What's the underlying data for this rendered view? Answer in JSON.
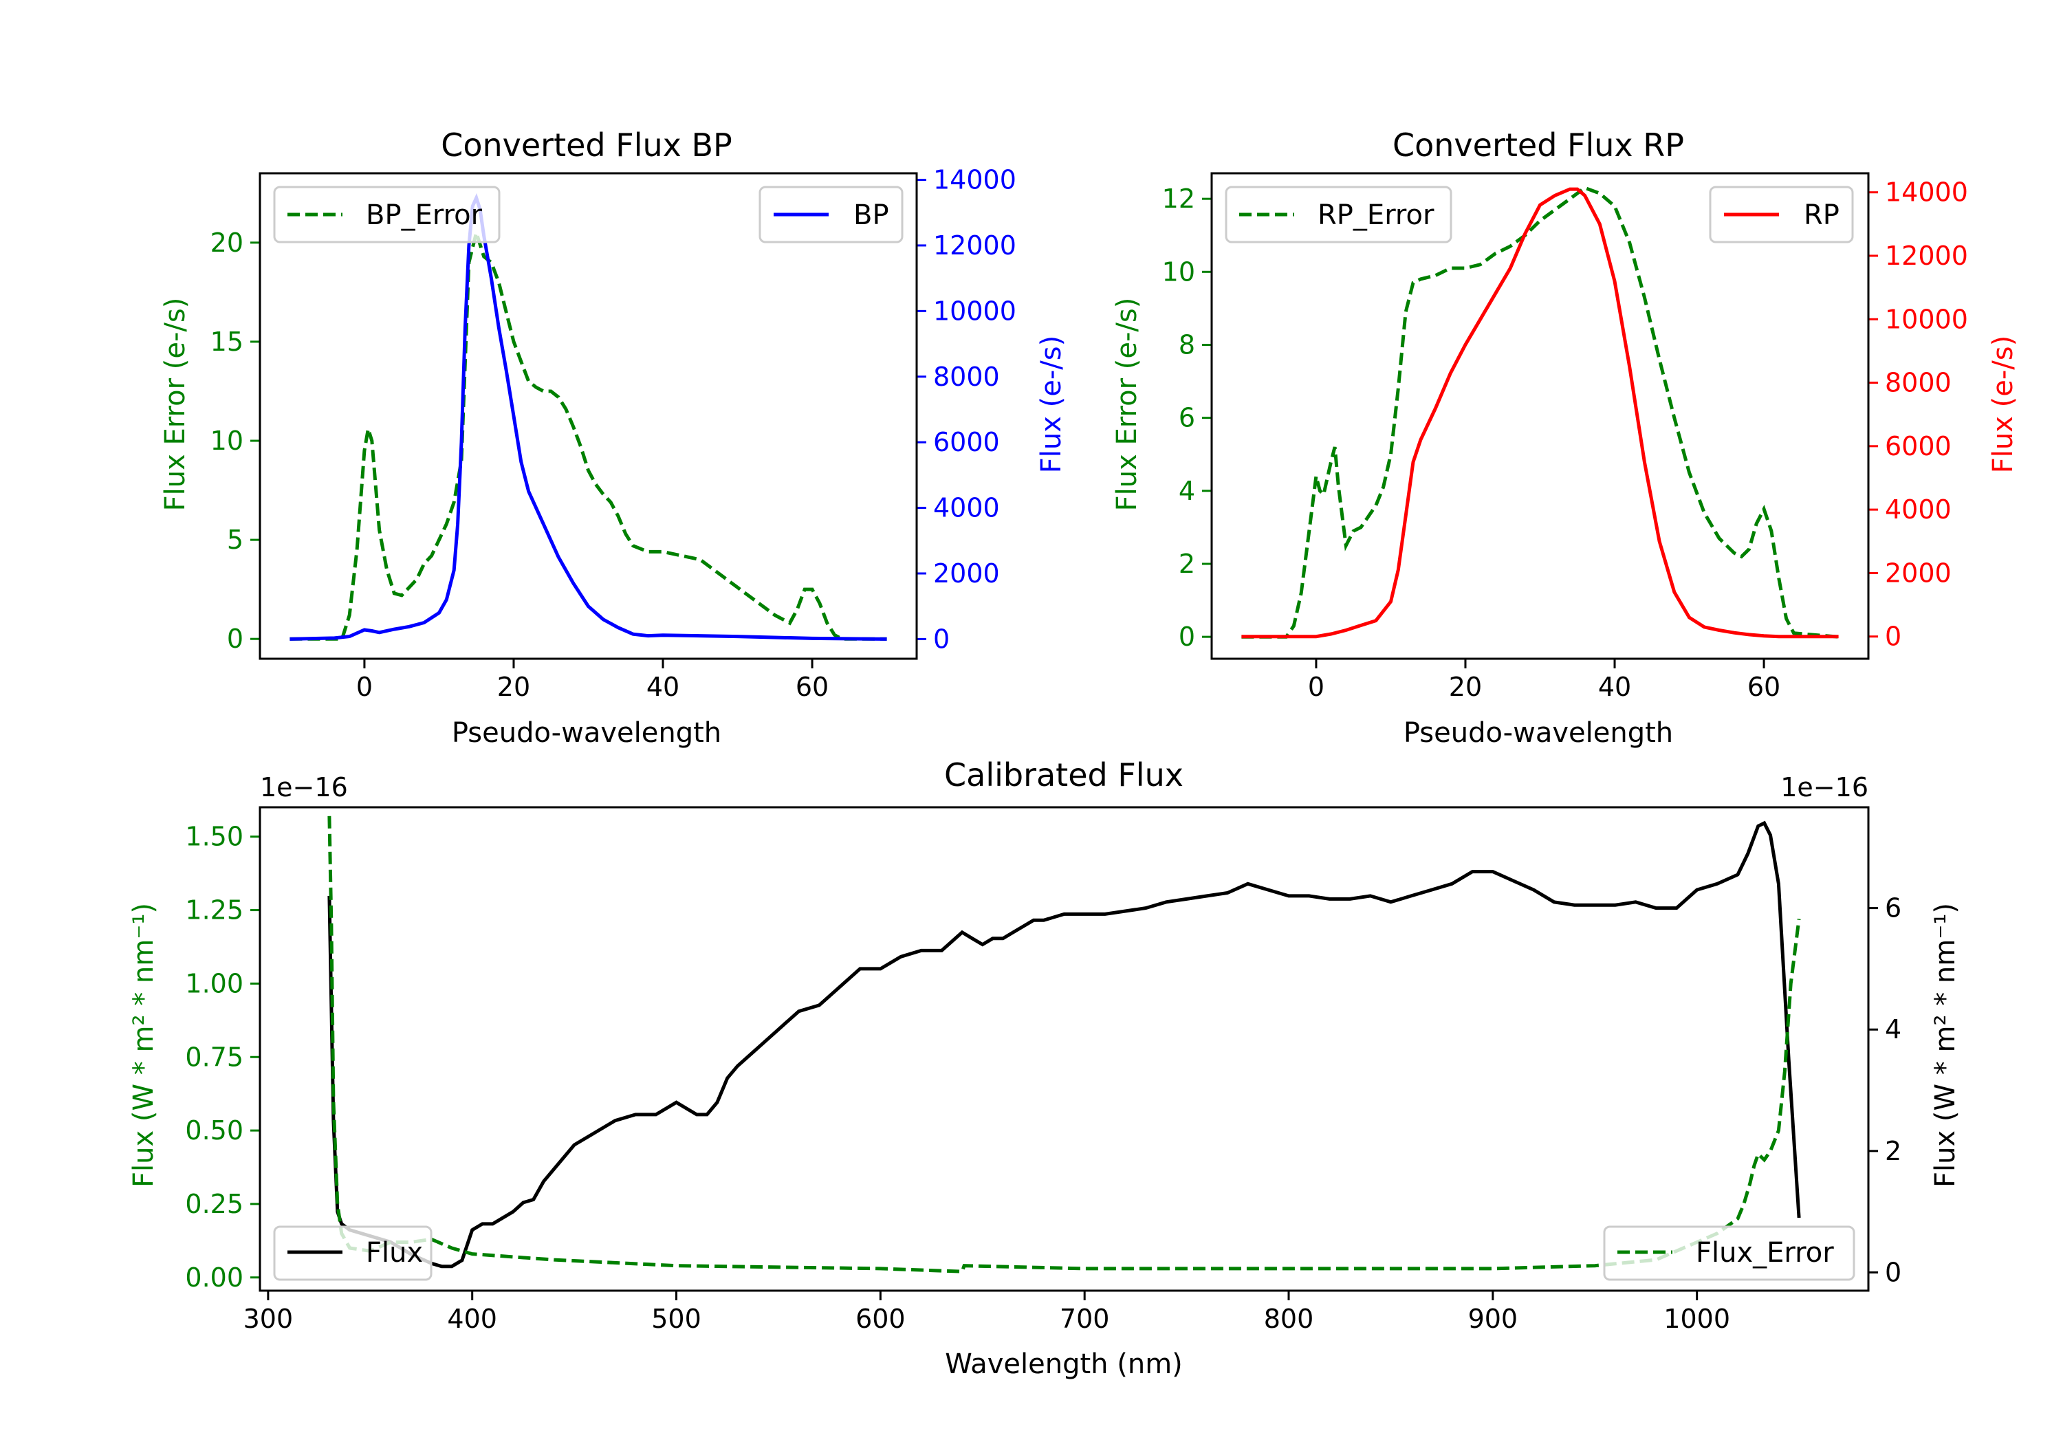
{
  "colors": {
    "green": "#008000",
    "blue": "#0000ff",
    "red": "#ff0000",
    "black": "#000000"
  },
  "chart_data": [
    {
      "id": "bp",
      "type": "line",
      "title": "Converted Flux BP",
      "xlabel": "Pseudo-wavelength",
      "ylabel_left": "Flux Error (e-/s)",
      "ylabel_right": "Flux (e-/s)",
      "xlim": [
        -14,
        74
      ],
      "ylim_left": [
        -1.0,
        23.5
      ],
      "ylim_right": [
        -600,
        14200
      ],
      "xticks": [
        0,
        20,
        40,
        60
      ],
      "yticks_left": [
        0,
        5,
        10,
        15,
        20
      ],
      "yticks_right": [
        0,
        2000,
        4000,
        6000,
        8000,
        10000,
        12000,
        14000
      ],
      "legend_left": "BP_Error",
      "legend_right": "BP",
      "series": [
        {
          "name": "BP_Error",
          "axis": "left",
          "color": "#008000",
          "dash": true,
          "x": [
            -10,
            -3,
            -2,
            -1,
            0,
            0.5,
            1,
            2,
            3,
            4,
            5,
            6,
            7,
            8,
            9,
            10,
            11,
            12,
            13,
            14,
            15,
            16,
            17,
            18,
            19,
            20,
            21,
            22,
            23,
            24,
            25,
            26,
            27,
            28,
            29,
            30,
            31,
            32,
            33,
            34,
            35,
            36,
            38,
            40,
            45,
            50,
            55,
            57,
            58,
            59,
            60,
            61,
            62,
            63,
            64,
            70
          ],
          "y": [
            0,
            0,
            1.2,
            4.5,
            9.5,
            10.6,
            10.0,
            5.5,
            3.5,
            2.3,
            2.2,
            2.6,
            3.0,
            3.8,
            4.2,
            5.0,
            5.8,
            6.9,
            9.0,
            19.0,
            20.5,
            19.3,
            19.0,
            18.0,
            16.5,
            15.0,
            14.0,
            13.0,
            12.7,
            12.5,
            12.5,
            12.2,
            11.6,
            10.7,
            9.7,
            8.5,
            7.8,
            7.3,
            6.9,
            6.2,
            5.3,
            4.7,
            4.4,
            4.4,
            4.0,
            2.6,
            1.2,
            0.8,
            1.5,
            2.5,
            2.5,
            1.8,
            0.8,
            0.2,
            0,
            0
          ]
        },
        {
          "name": "BP",
          "axis": "right",
          "color": "#0000ff",
          "dash": false,
          "x": [
            -10,
            -4,
            -2,
            0,
            1,
            2,
            4,
            6,
            8,
            10,
            11,
            12,
            12.5,
            13,
            13.5,
            14,
            14.5,
            15,
            15.5,
            16,
            17,
            18,
            19,
            20,
            21,
            22,
            24,
            26,
            28,
            30,
            32,
            34,
            36,
            38,
            40,
            50,
            60,
            70
          ],
          "y": [
            0,
            30,
            80,
            280,
            250,
            200,
            300,
            380,
            500,
            800,
            1200,
            2100,
            3500,
            6000,
            9500,
            12000,
            13200,
            13450,
            13100,
            12300,
            11000,
            9500,
            8200,
            6800,
            5400,
            4500,
            3500,
            2500,
            1700,
            1000,
            600,
            350,
            150,
            100,
            120,
            80,
            20,
            0
          ]
        }
      ]
    },
    {
      "id": "rp",
      "type": "line",
      "title": "Converted Flux RP",
      "xlabel": "Pseudo-wavelength",
      "ylabel_left": "Flux Error (e-/s)",
      "ylabel_right": "Flux (e-/s)",
      "xlim": [
        -14,
        74
      ],
      "ylim_left": [
        -0.6,
        12.7
      ],
      "ylim_right": [
        -700,
        14600
      ],
      "xticks": [
        0,
        20,
        40,
        60
      ],
      "yticks_left": [
        0,
        2,
        4,
        6,
        8,
        10,
        12
      ],
      "yticks_right": [
        0,
        2000,
        4000,
        6000,
        8000,
        10000,
        12000,
        14000
      ],
      "legend_left": "RP_Error",
      "legend_right": "RP",
      "series": [
        {
          "name": "RP_Error",
          "axis": "left",
          "color": "#008000",
          "dash": true,
          "x": [
            -10,
            -4,
            -3,
            -2,
            -1,
            0,
            0.5,
            1,
            2,
            2.5,
            3,
            4,
            5,
            6,
            7,
            8,
            9,
            10,
            11,
            12,
            13,
            14,
            16,
            18,
            20,
            22,
            24,
            26,
            28,
            30,
            32,
            34,
            36,
            38,
            40,
            42,
            44,
            46,
            48,
            50,
            52,
            54,
            56,
            57,
            58,
            59,
            60,
            61,
            62,
            63,
            64,
            70
          ],
          "y": [
            0,
            0,
            0.3,
            1.2,
            2.8,
            4.4,
            4.0,
            3.9,
            4.8,
            5.2,
            4.1,
            2.5,
            2.9,
            3.0,
            3.3,
            3.6,
            4.1,
            5.0,
            6.8,
            8.9,
            9.7,
            9.8,
            9.9,
            10.1,
            10.1,
            10.2,
            10.5,
            10.7,
            11.0,
            11.4,
            11.7,
            12.0,
            12.3,
            12.15,
            11.8,
            10.8,
            9.3,
            7.6,
            6.0,
            4.5,
            3.4,
            2.7,
            2.3,
            2.2,
            2.4,
            3.1,
            3.5,
            2.9,
            1.6,
            0.5,
            0.1,
            0
          ]
        },
        {
          "name": "RP",
          "axis": "right",
          "color": "#ff0000",
          "dash": false,
          "x": [
            -10,
            0,
            2,
            4,
            6,
            8,
            10,
            11,
            12,
            13,
            14,
            16,
            18,
            20,
            22,
            24,
            26,
            28,
            30,
            32,
            34,
            35,
            36,
            38,
            40,
            42,
            44,
            46,
            48,
            50,
            52,
            54,
            56,
            58,
            60,
            62,
            66,
            70
          ],
          "y": [
            0,
            0,
            80,
            200,
            350,
            500,
            1100,
            2100,
            3800,
            5500,
            6200,
            7200,
            8300,
            9200,
            10000,
            10800,
            11600,
            12700,
            13600,
            13900,
            14100,
            14100,
            13900,
            13000,
            11200,
            8500,
            5500,
            3000,
            1400,
            600,
            300,
            200,
            120,
            60,
            20,
            0,
            0,
            0
          ]
        }
      ]
    },
    {
      "id": "calibrated",
      "type": "line",
      "title": "Calibrated Flux",
      "xlabel": "Wavelength (nm)",
      "ylabel_left": "Flux (W * m² * nm⁻¹)",
      "ylabel_right": "Flux (W * m² * nm⁻¹)",
      "exponent_left": "1e−16",
      "exponent_right": "1e−16",
      "xlim": [
        296,
        1084
      ],
      "ylim_left": [
        -0.045,
        1.6
      ],
      "ylim_right": [
        -0.3,
        7.66
      ],
      "xticks": [
        300,
        400,
        500,
        600,
        700,
        800,
        900,
        1000
      ],
      "yticks_left": [
        0.0,
        0.25,
        0.5,
        0.75,
        1.0,
        1.25,
        1.5
      ],
      "yticks_left_labels": [
        "0.00",
        "0.25",
        "0.50",
        "0.75",
        "1.00",
        "1.25",
        "1.50"
      ],
      "yticks_right": [
        0,
        2,
        4,
        6
      ],
      "legend_left": "Flux",
      "legend_right": "Flux_Error",
      "series": [
        {
          "name": "Flux",
          "axis": "right",
          "color": "#000000",
          "dash": false,
          "x": [
            330,
            332,
            334,
            336,
            340,
            350,
            360,
            370,
            380,
            385,
            390,
            395,
            400,
            405,
            410,
            420,
            425,
            430,
            435,
            440,
            450,
            460,
            470,
            480,
            490,
            500,
            510,
            515,
            520,
            525,
            530,
            540,
            550,
            560,
            570,
            580,
            590,
            600,
            610,
            620,
            630,
            640,
            645,
            650,
            655,
            660,
            665,
            670,
            675,
            680,
            690,
            700,
            710,
            720,
            730,
            740,
            750,
            760,
            770,
            780,
            790,
            800,
            810,
            820,
            830,
            840,
            850,
            860,
            870,
            880,
            890,
            900,
            910,
            920,
            930,
            940,
            950,
            960,
            970,
            980,
            990,
            1000,
            1010,
            1020,
            1025,
            1030,
            1033,
            1036,
            1040,
            1045,
            1050
          ],
          "y": [
            6.2,
            2.5,
            1.0,
            0.8,
            0.7,
            0.6,
            0.5,
            0.3,
            0.15,
            0.1,
            0.1,
            0.2,
            0.7,
            0.8,
            0.8,
            1.0,
            1.15,
            1.2,
            1.5,
            1.7,
            2.1,
            2.3,
            2.5,
            2.6,
            2.6,
            2.8,
            2.6,
            2.6,
            2.8,
            3.2,
            3.4,
            3.7,
            4.0,
            4.3,
            4.4,
            4.7,
            5.0,
            5.0,
            5.2,
            5.3,
            5.3,
            5.6,
            5.5,
            5.4,
            5.5,
            5.5,
            5.6,
            5.7,
            5.8,
            5.8,
            5.9,
            5.9,
            5.9,
            5.95,
            6.0,
            6.1,
            6.15,
            6.2,
            6.25,
            6.4,
            6.3,
            6.2,
            6.2,
            6.15,
            6.15,
            6.2,
            6.1,
            6.2,
            6.3,
            6.4,
            6.6,
            6.6,
            6.45,
            6.3,
            6.1,
            6.05,
            6.05,
            6.05,
            6.1,
            6.0,
            6.0,
            6.3,
            6.4,
            6.55,
            6.9,
            7.35,
            7.4,
            7.2,
            6.4,
            3.5,
            0.9
          ]
        },
        {
          "name": "Flux_Error",
          "axis": "left",
          "color": "#008000",
          "dash": true,
          "x": [
            330,
            331,
            332,
            334,
            336,
            340,
            350,
            360,
            370,
            380,
            390,
            400,
            420,
            440,
            500,
            600,
            640,
            641,
            700,
            800,
            900,
            950,
            980,
            1000,
            1010,
            1020,
            1023,
            1026,
            1028,
            1030,
            1033,
            1036,
            1040,
            1043,
            1046,
            1050
          ],
          "y": [
            1.57,
            1.2,
            0.6,
            0.25,
            0.15,
            0.1,
            0.09,
            0.12,
            0.12,
            0.13,
            0.1,
            0.08,
            0.07,
            0.06,
            0.04,
            0.03,
            0.02,
            0.04,
            0.03,
            0.03,
            0.03,
            0.04,
            0.06,
            0.12,
            0.15,
            0.2,
            0.25,
            0.32,
            0.38,
            0.42,
            0.4,
            0.43,
            0.5,
            0.7,
            1.0,
            1.22
          ]
        }
      ]
    }
  ]
}
